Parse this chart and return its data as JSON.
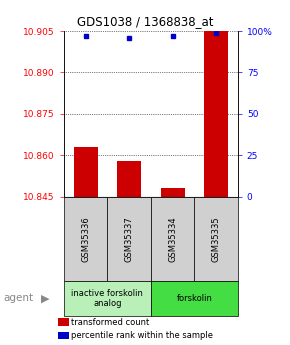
{
  "title": "GDS1038 / 1368838_at",
  "samples": [
    "GSM35336",
    "GSM35337",
    "GSM35334",
    "GSM35335"
  ],
  "bar_values": [
    10.863,
    10.858,
    10.848,
    10.905
  ],
  "blue_dot_values": [
    97,
    96,
    97,
    99
  ],
  "ymin": 10.845,
  "ymax": 10.905,
  "y2min": 0,
  "y2max": 100,
  "yticks": [
    10.845,
    10.86,
    10.875,
    10.89,
    10.905
  ],
  "y2ticks": [
    0,
    25,
    50,
    75,
    100
  ],
  "bar_color": "#cc0000",
  "dot_color": "#0000cc",
  "bar_width": 0.55,
  "group_labels": [
    "inactive forskolin\nanalog",
    "forskolin"
  ],
  "group_ranges": [
    [
      0,
      2
    ],
    [
      2,
      4
    ]
  ],
  "group_colors": [
    "#b8f0b8",
    "#44dd44"
  ],
  "legend_items": [
    {
      "color": "#cc0000",
      "label": "transformed count"
    },
    {
      "color": "#0000cc",
      "label": "percentile rank within the sample"
    }
  ],
  "background_color": "#ffffff"
}
